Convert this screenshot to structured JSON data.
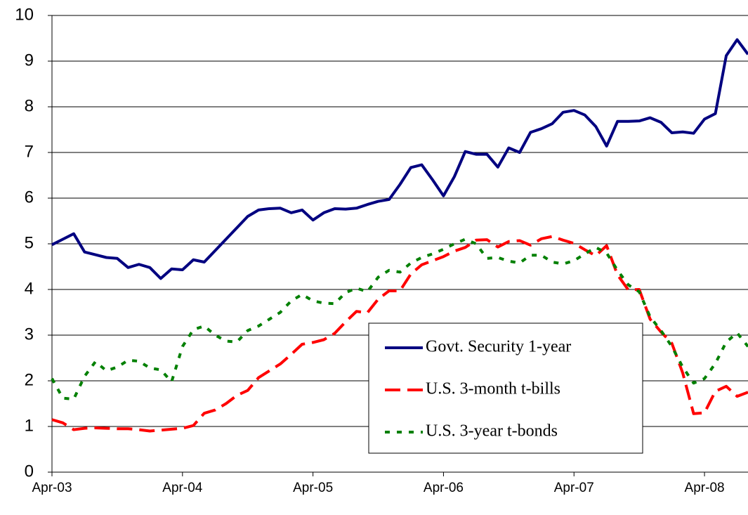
{
  "chart_data": {
    "type": "line",
    "categories": [
      "Apr-03",
      null,
      null,
      null,
      null,
      null,
      null,
      null,
      null,
      null,
      null,
      null,
      "Apr-04",
      null,
      null,
      null,
      null,
      null,
      null,
      null,
      null,
      null,
      null,
      null,
      "Apr-05",
      null,
      null,
      null,
      null,
      null,
      null,
      null,
      null,
      null,
      null,
      null,
      "Apr-06",
      null,
      null,
      null,
      null,
      null,
      null,
      null,
      null,
      null,
      null,
      null,
      "Apr-07",
      null,
      null,
      null,
      null,
      null,
      null,
      null,
      null,
      null,
      null,
      null,
      "Apr-08",
      null,
      null,
      null,
      null
    ],
    "series": [
      {
        "name": "Govt. Security 1-year",
        "color": "#000080",
        "dash": "solid",
        "values": [
          4.98,
          5.1,
          5.22,
          4.82,
          4.76,
          4.7,
          4.68,
          4.48,
          4.55,
          4.48,
          4.24,
          4.45,
          4.43,
          4.65,
          4.6,
          4.85,
          5.1,
          5.35,
          5.6,
          5.74,
          5.77,
          5.78,
          5.68,
          5.74,
          5.52,
          5.68,
          5.77,
          5.76,
          5.78,
          5.86,
          5.93,
          5.97,
          6.3,
          6.67,
          6.73,
          6.4,
          6.05,
          6.47,
          7.02,
          6.96,
          6.96,
          6.68,
          7.1,
          7.0,
          7.44,
          7.52,
          7.63,
          7.88,
          7.92,
          7.82,
          7.57,
          7.14,
          7.68,
          7.68,
          7.69,
          7.76,
          7.66,
          7.43,
          7.45,
          7.42,
          7.73,
          7.85,
          9.12,
          9.47,
          9.15
        ]
      },
      {
        "name": "U.S. 3-month t-bills",
        "color": "#ff0000",
        "dash": "dashed",
        "values": [
          1.15,
          1.08,
          0.93,
          0.96,
          0.97,
          0.96,
          0.95,
          0.95,
          0.93,
          0.9,
          0.92,
          0.94,
          0.96,
          1.02,
          1.29,
          1.36,
          1.5,
          1.68,
          1.79,
          2.07,
          2.22,
          2.37,
          2.58,
          2.8,
          2.84,
          2.9,
          3.04,
          3.29,
          3.52,
          3.49,
          3.79,
          3.97,
          3.97,
          4.34,
          4.54,
          4.63,
          4.72,
          4.84,
          4.92,
          5.08,
          5.09,
          4.93,
          5.05,
          5.07,
          4.97,
          5.11,
          5.16,
          5.08,
          5.01,
          4.87,
          4.74,
          4.96,
          4.32,
          3.99,
          4.0,
          3.35,
          3.07,
          2.82,
          2.17,
          1.28,
          1.3,
          1.77,
          1.88,
          1.66,
          1.75
        ]
      },
      {
        "name": "U.S. 3-year t-bonds",
        "color": "#008000",
        "dash": "dotted",
        "values": [
          2.05,
          1.62,
          1.6,
          2.1,
          2.42,
          2.22,
          2.3,
          2.45,
          2.43,
          2.28,
          2.24,
          1.98,
          2.75,
          3.12,
          3.2,
          3.0,
          2.87,
          2.85,
          3.1,
          3.2,
          3.35,
          3.5,
          3.75,
          3.89,
          3.75,
          3.7,
          3.69,
          3.93,
          4.03,
          3.95,
          4.27,
          4.42,
          4.38,
          4.58,
          4.7,
          4.78,
          4.88,
          5.0,
          5.1,
          5.0,
          4.68,
          4.7,
          4.62,
          4.58,
          4.75,
          4.75,
          4.6,
          4.56,
          4.63,
          4.78,
          4.92,
          4.8,
          4.42,
          4.1,
          3.95,
          3.4,
          3.1,
          2.75,
          2.3,
          1.95,
          2.05,
          2.38,
          2.85,
          3.05,
          2.75
        ]
      }
    ],
    "ylim": [
      0,
      10
    ],
    "yticks": [
      0,
      1,
      2,
      3,
      4,
      5,
      6,
      7,
      8,
      9,
      10
    ],
    "grid": true
  }
}
